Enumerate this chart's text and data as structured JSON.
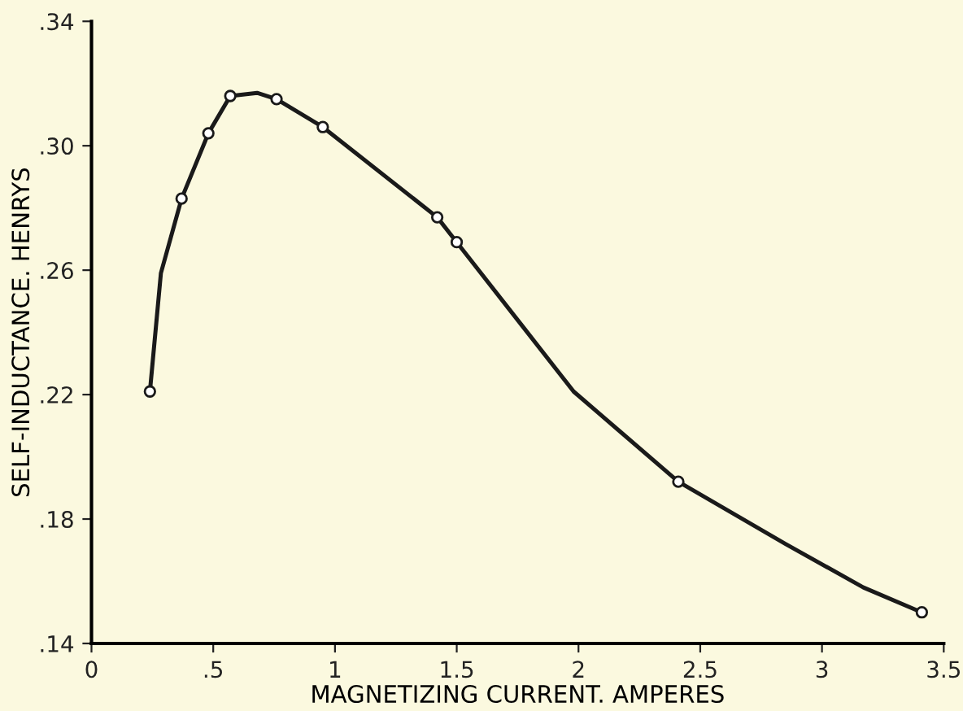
{
  "chart_data": {
    "type": "scatter",
    "xlabel": "MAGNETIZING CURRENT. AMPERES",
    "ylabel": "SELF-INDUCTANCE. HENRYS",
    "x": [
      0.24,
      0.37,
      0.48,
      0.57,
      0.76,
      0.95,
      1.42,
      1.5,
      2.41,
      3.41
    ],
    "series": [
      {
        "type": "line",
        "color": "#1a1a1a",
        "x": [
          0.24,
          0.285,
          0.37,
          0.48,
          0.57,
          0.68,
          0.76,
          0.95,
          1.42,
          1.5,
          1.76,
          1.98,
          2.41,
          2.85,
          3.17,
          3.41
        ],
        "values": [
          0.221,
          0.259,
          0.283,
          0.304,
          0.316,
          0.317,
          0.315,
          0.306,
          0.277,
          0.269,
          0.243,
          0.221,
          0.192,
          0.172,
          0.158,
          0.15
        ]
      },
      {
        "color": "#1a1a1a",
        "marker": "circle",
        "values": [
          0.221,
          0.283,
          0.304,
          0.316,
          0.315,
          0.306,
          0.277,
          0.269,
          0.192,
          0.15
        ]
      }
    ],
    "line_style": "solid",
    "grid": false,
    "xlim": [
      0,
      3.5
    ],
    "ylim": [
      0.14,
      0.34
    ],
    "xticks": [
      0,
      {
        "value": 0.5,
        "label": ".5"
      },
      1,
      1.5,
      2,
      2.5,
      3,
      3.5
    ],
    "yticks": [
      {
        "value": 0.14,
        "label": ".14"
      },
      {
        "value": 0.18,
        "label": ".18"
      },
      {
        "value": 0.22,
        "label": ".22"
      },
      {
        "value": 0.26,
        "label": ".26"
      },
      {
        "value": 0.3,
        "label": ".30"
      },
      {
        "value": 0.34,
        "label": ".34"
      }
    ]
  }
}
